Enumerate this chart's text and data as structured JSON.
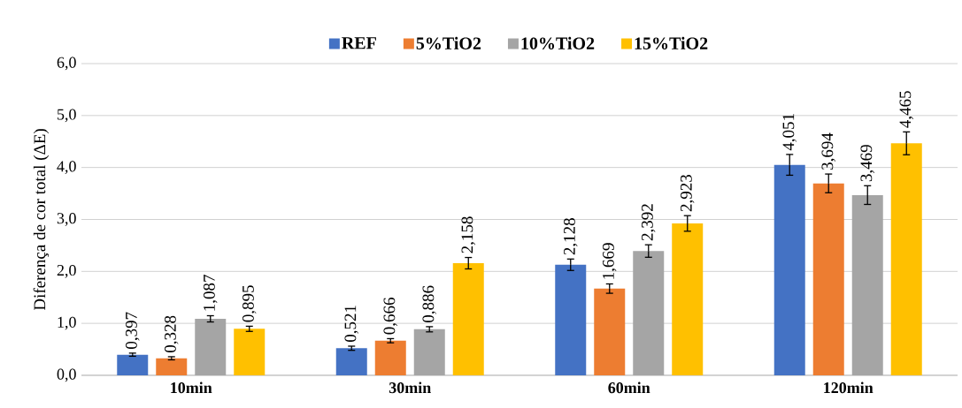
{
  "chart_data": {
    "type": "bar",
    "ylabel": "Diferença de cor total (ΔE)",
    "categories": [
      "10min",
      "30min",
      "60min",
      "120min"
    ],
    "series": [
      {
        "name": "REF",
        "color": "#4472c4",
        "values": [
          0.397,
          0.521,
          2.128,
          4.051
        ],
        "errors": [
          0.03,
          0.04,
          0.11,
          0.2
        ],
        "value_labels": [
          "0,397",
          "0,521",
          "2,128",
          "4,051"
        ]
      },
      {
        "name": "5%TiO2",
        "color": "#ed7d31",
        "values": [
          0.328,
          0.666,
          1.669,
          3.694
        ],
        "errors": [
          0.03,
          0.04,
          0.09,
          0.18
        ],
        "value_labels": [
          "0,328",
          "0,666",
          "1,669",
          "3,694"
        ]
      },
      {
        "name": "10%TiO2",
        "color": "#a5a5a5",
        "values": [
          1.087,
          0.886,
          2.392,
          3.469
        ],
        "errors": [
          0.06,
          0.05,
          0.12,
          0.18
        ],
        "value_labels": [
          "1,087",
          "0,886",
          "2,392",
          "3,469"
        ]
      },
      {
        "name": "15%TiO2",
        "color": "#ffc000",
        "values": [
          0.895,
          2.158,
          2.923,
          4.465
        ],
        "errors": [
          0.05,
          0.11,
          0.15,
          0.22
        ],
        "value_labels": [
          "0,895",
          "2,158",
          "2,923",
          "4,465"
        ]
      }
    ],
    "ylim": [
      0,
      6
    ],
    "yticks": [
      {
        "value": 0,
        "label": "0,0"
      },
      {
        "value": 1,
        "label": "1,0"
      },
      {
        "value": 2,
        "label": "2,0"
      },
      {
        "value": 3,
        "label": "3,0"
      },
      {
        "value": 4,
        "label": "4,0"
      },
      {
        "value": 5,
        "label": "5,0"
      },
      {
        "value": 6,
        "label": "6,0"
      }
    ],
    "grid": "y",
    "legend": "top"
  }
}
